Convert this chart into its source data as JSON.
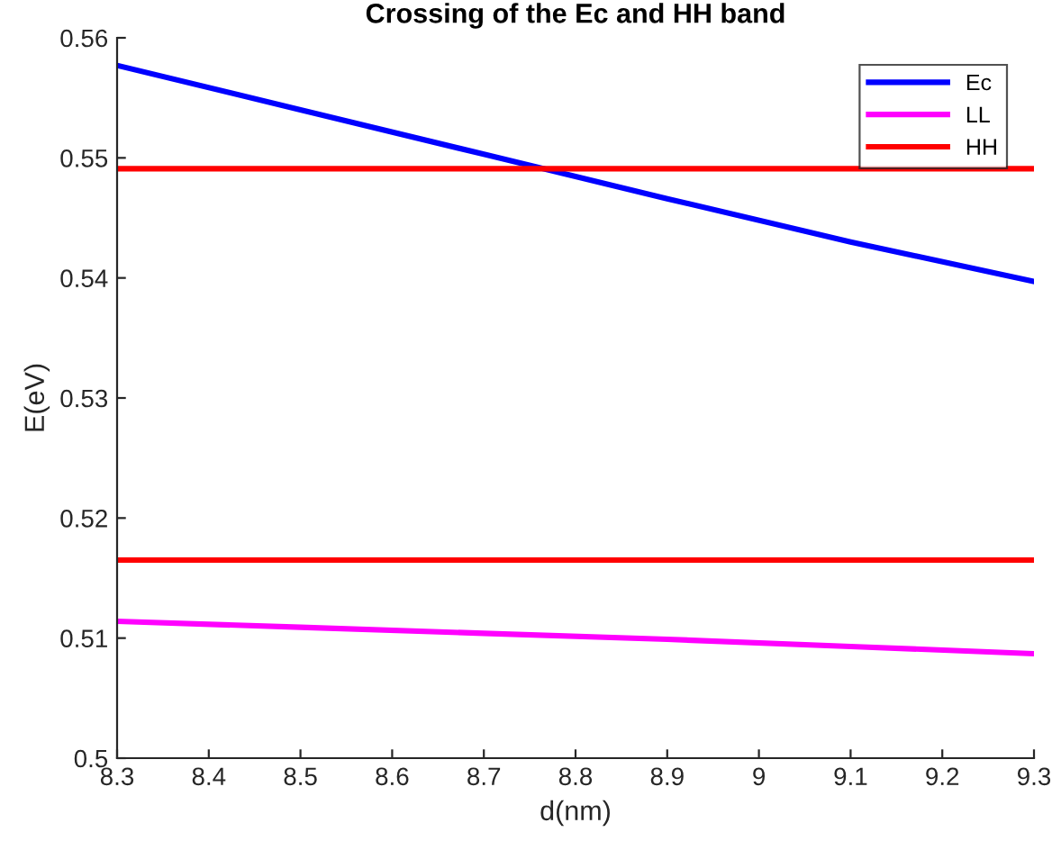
{
  "chart_data": {
    "type": "line",
    "title": "Crossing of the Ec and HH band",
    "xlabel": "d(nm)",
    "ylabel": "E(eV)",
    "x": [
      8.3,
      8.5,
      8.7,
      8.9,
      9.1,
      9.3
    ],
    "series": [
      {
        "name": "Ec",
        "color": "#0000ff",
        "values": [
          0.5577,
          0.554,
          0.5503,
          0.5466,
          0.543,
          0.5397
        ]
      },
      {
        "name": "LL",
        "color": "#ff00ff",
        "values": [
          0.5114,
          0.5109,
          0.5104,
          0.5099,
          0.5093,
          0.5087
        ]
      },
      {
        "name": "HH",
        "color": "#ff0000",
        "values": [
          0.5491,
          0.5491,
          0.5491,
          0.5491,
          0.5491,
          0.5491
        ]
      },
      {
        "color": "#ff0000",
        "values": [
          0.5165,
          0.5165,
          0.5165,
          0.5165,
          0.5165,
          0.5165
        ]
      }
    ],
    "xlim": [
      8.3,
      9.3
    ],
    "xticks": [
      8.3,
      8.4,
      8.5,
      8.6,
      8.7,
      8.8,
      8.9,
      9,
      9.1,
      9.2,
      9.3
    ],
    "ylim": [
      0.5,
      0.56
    ],
    "yticks": [
      0.5,
      0.51,
      0.52,
      0.53,
      0.54,
      0.55,
      0.56
    ],
    "grid": false,
    "legend": "top right",
    "line_style": "solid",
    "marker": "none"
  }
}
